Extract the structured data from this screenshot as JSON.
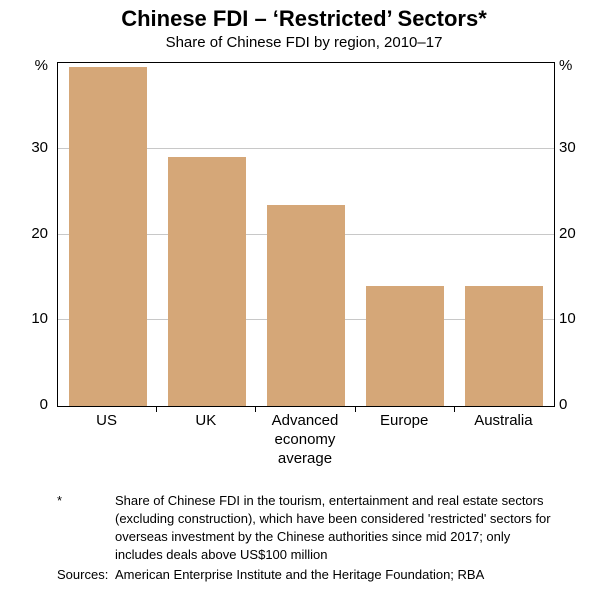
{
  "chart_data": {
    "type": "bar",
    "title": "Chinese FDI – ‘Restricted’ Sectors*",
    "subtitle": "Share of Chinese FDI by region, 2010–17",
    "categories": [
      "US",
      "UK",
      "Advanced economy average",
      "Europe",
      "Australia"
    ],
    "values": [
      39.5,
      29,
      23.5,
      14,
      14
    ],
    "unit": "%",
    "ylim": [
      0,
      40
    ],
    "yticks": [
      0,
      10,
      20,
      30
    ],
    "grid": true,
    "legend": "none",
    "colors": {
      "bar": "#d5a778",
      "gridline": "#c8c8c8",
      "axis": "#000000"
    }
  },
  "footnote": {
    "marker": "*",
    "text": "Share of Chinese FDI in the tourism, entertainment and real estate sectors (excluding construction), which have been considered 'restricted' sectors for overseas investment by the Chinese authorities since mid 2017; only includes deals above US$100 million",
    "sources_label": "Sources:",
    "sources_text": "American Enterprise Institute and the Heritage Foundation; RBA"
  }
}
